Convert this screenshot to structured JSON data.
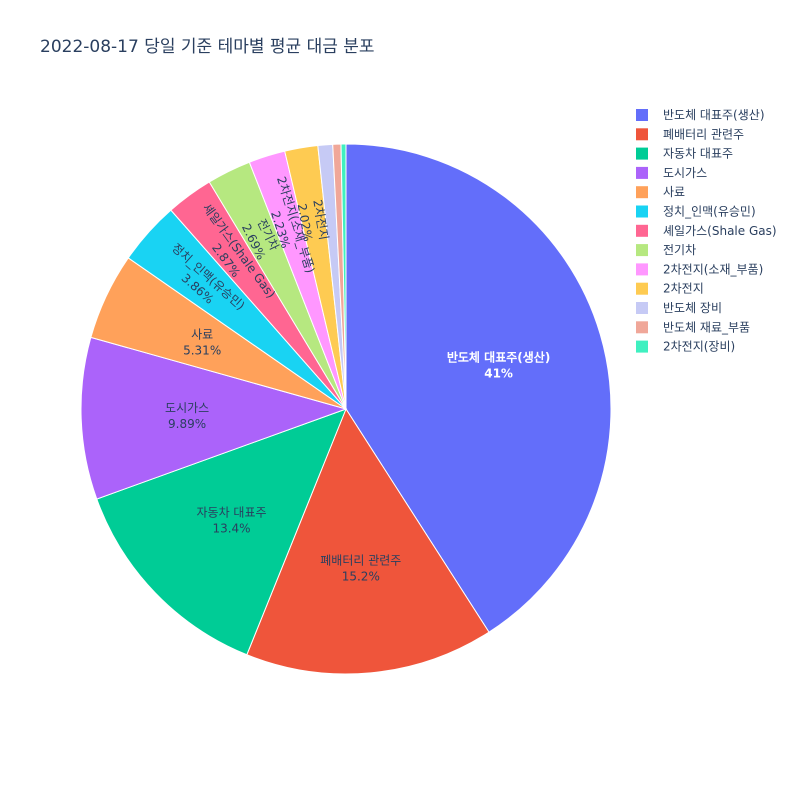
{
  "chart_data": {
    "type": "pie",
    "title": "2022-08-17 당일 기준 테마별 평균 대금 분포",
    "categories": [
      "반도체 대표주(생산)",
      "폐배터리 관련주",
      "자동차 대표주",
      "도시가스",
      "사료",
      "정치_인맥(유승민)",
      "셰일가스(Shale Gas)",
      "전기차",
      "2차전지(소재_부품)",
      "2차전지",
      "반도체 장비",
      "반도체 재료_부품",
      "2차전지(장비)"
    ],
    "values": [
      41,
      15.2,
      13.4,
      9.89,
      5.31,
      3.86,
      2.87,
      2.69,
      2.23,
      2.02,
      0.9,
      0.5,
      0.3
    ],
    "percent_labels": [
      "41%",
      "15.2%",
      "13.4%",
      "9.89%",
      "5.31%",
      "3.86%",
      "2.87%",
      "2.69%",
      "2.23%",
      "2.02%",
      "",
      "",
      ""
    ],
    "colors": [
      "#636efa",
      "#EF553B",
      "#00cc96",
      "#ab63fa",
      "#FFA15A",
      "#19d3f3",
      "#FF6692",
      "#B6E880",
      "#FF97FF",
      "#FECB52",
      "#c6caf5",
      "#f0a799",
      "#3ff0c0"
    ],
    "legend_position": "right",
    "direction": "clockwise",
    "start_angle": "top"
  }
}
